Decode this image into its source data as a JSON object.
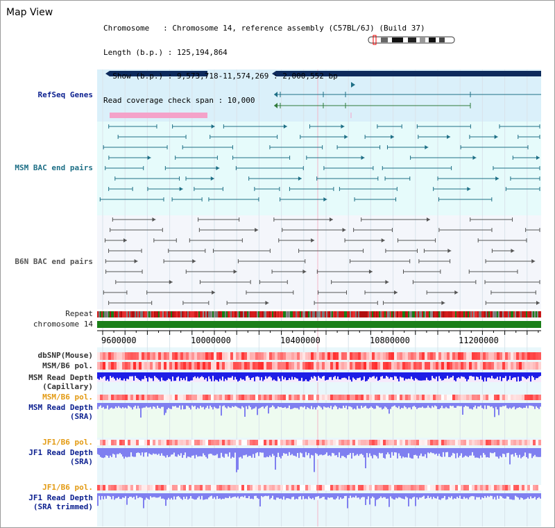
{
  "header": {
    "title": "Map View",
    "info": [
      "Chromosome   : Chromosome 14, reference assembly (C57BL/6J) (Build 37)",
      "Length (b.p.) : 125,194,864",
      "  Show (b.p.) : 9,573,718-11,574,269 : 2,000,552 bp",
      "Read coverage check span : 10,000"
    ]
  },
  "tracks": {
    "refseq": "RefSeq Genes",
    "msm_bac": "MSM BAC end pairs",
    "b6n_bac": "B6N BAC end pairs",
    "repeat": "Repeat",
    "chromosome": "chromosome 14",
    "dbsnp": "dbSNP(Mouse)",
    "msm_pol": "MSM/B6 pol.",
    "msm_cap_1": "MSM Read Depth",
    "msm_cap_2": "(Capillary)",
    "msm_pol2": "MSM/B6 pol.",
    "msm_sra_1": "MSM Read Depth",
    "msm_sra_2": "(SRA)",
    "jf1_pol": "JF1/B6 pol.",
    "jf1_sra_1": "JF1 Read Depth",
    "jf1_sra_2": "(SRA)",
    "jf1_pol2": "JF1/B6 pol.",
    "jf1_trim_1": "JF1 Read Depth",
    "jf1_trim_2": "(SRA trimmed)"
  },
  "axis": {
    "ticks": [
      "9600000",
      "10000000",
      "10400000",
      "10800000",
      "11200000"
    ]
  },
  "colors": {
    "refseq_bg": "#daf0fa",
    "msm_bac_bg": "#e6fbfb",
    "b6n_bg": "#f4f6fb",
    "gene": "#0d2a5c",
    "gene_line_teal": "#1e6f86",
    "gene_line_green": "#2f7a3a",
    "pink_bar": "#f4a2c9",
    "chromosome_green": "#1a7f18",
    "depth_blue": "#1e1ee6",
    "depth_light": "#7f7ff0"
  }
}
